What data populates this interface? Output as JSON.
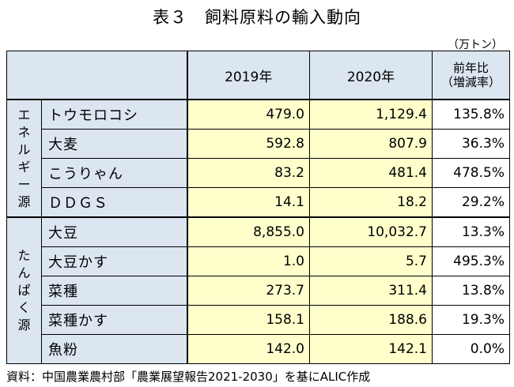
{
  "title": "表３　飼料原料の輸入動向",
  "unit": "（万トン）",
  "header": {
    "col_2019": "2019年",
    "col_2020": "2020年",
    "col_ratio_line1": "前年比",
    "col_ratio_line2": "（増減率）"
  },
  "groups": [
    {
      "label_chars": [
        "エ",
        "ネ",
        "ル",
        "ギ",
        "ー",
        "源"
      ],
      "rows": [
        {
          "name": "トウモロコシ",
          "y2019": "479.0",
          "y2020": "1,129.4",
          "ratio": "135.8%"
        },
        {
          "name": "大麦",
          "y2019": "592.8",
          "y2020": "807.9",
          "ratio": "36.3%"
        },
        {
          "name": "こうりゃん",
          "y2019": "83.2",
          "y2020": "481.4",
          "ratio": "478.5%"
        },
        {
          "name": "ＤＤＧＳ",
          "y2019": "14.1",
          "y2020": "18.2",
          "ratio": "29.2%"
        }
      ]
    },
    {
      "label_chars": [
        "た",
        "ん",
        "ぱ",
        "く",
        "源"
      ],
      "rows": [
        {
          "name": "大豆",
          "y2019": "8,855.0",
          "y2020": "10,032.7",
          "ratio": "13.3%"
        },
        {
          "name": "大豆かす",
          "y2019": "1.0",
          "y2020": "5.7",
          "ratio": "495.3%"
        },
        {
          "name": "菜種",
          "y2019": "273.7",
          "y2020": "311.4",
          "ratio": "13.8%"
        },
        {
          "name": "菜種かす",
          "y2019": "158.1",
          "y2020": "188.6",
          "ratio": "19.3%"
        },
        {
          "name": "魚粉",
          "y2019": "142.0",
          "y2020": "142.1",
          "ratio": "0.0%"
        }
      ]
    }
  ],
  "source": "資料：中国農業農村部「農業展望報告2021-2030」を基にALIC作成"
}
